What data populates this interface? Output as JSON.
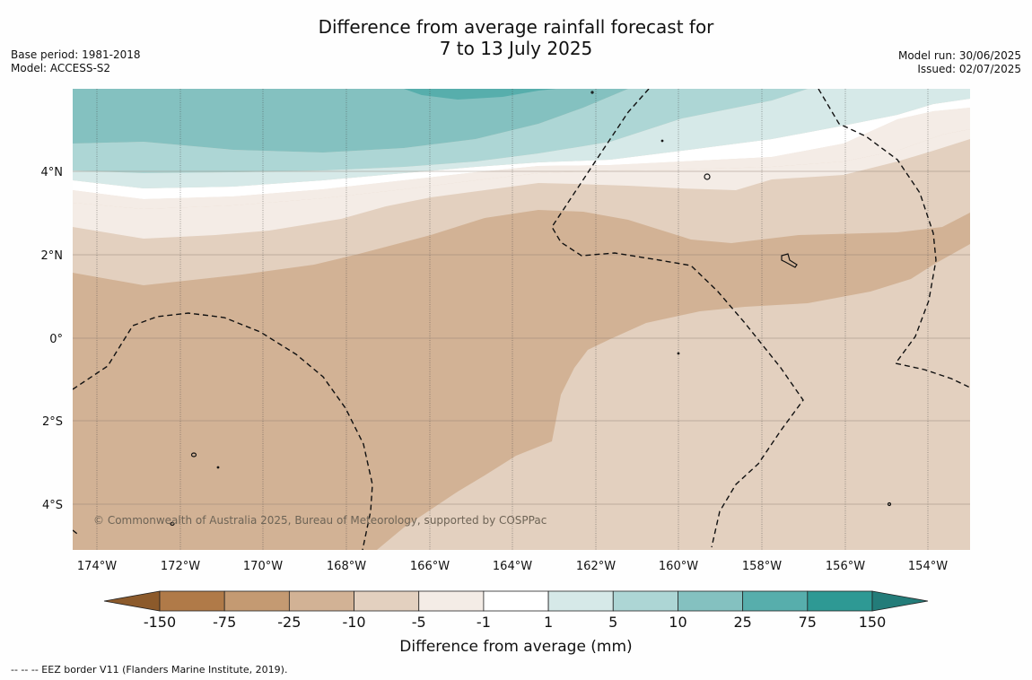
{
  "title": {
    "line1": "Difference from average rainfall forecast for",
    "line2": "7 to 13 July 2025"
  },
  "meta_left": {
    "base_period": "Base period: 1981-2018",
    "model": "Model: ACCESS-S2"
  },
  "meta_right": {
    "model_run": "Model run: 30/06/2025",
    "issued": "Issued: 02/07/2025"
  },
  "map": {
    "lon_range": [
      -174.6,
      -152.9
    ],
    "lat_range": [
      -5.2,
      5.9
    ],
    "x_ticks": [
      "174°W",
      "172°W",
      "170°W",
      "168°W",
      "166°W",
      "164°W",
      "162°W",
      "160°W",
      "158°W",
      "156°W",
      "154°W"
    ],
    "y_ticks": [
      "4°N",
      "2°N",
      "0°",
      "2°S",
      "4°S"
    ],
    "copyright": "© Commonwealth of Australia 2025, Bureau of Meteorology, supported by COSPPac"
  },
  "legend": {
    "ticks": [
      "-150",
      "-75",
      "-25",
      "-10",
      "-5",
      "-1",
      "1",
      "5",
      "10",
      "25",
      "75",
      "150"
    ],
    "colors": [
      "#8c5a2b",
      "#b07a48",
      "#c49a72",
      "#d2b295",
      "#e3d0bf",
      "#f4ece6",
      "#ffffff",
      "#d6e9e8",
      "#add6d5",
      "#84c1c0",
      "#57aeac",
      "#2e9994",
      "#237c79"
    ],
    "label": "Difference from average (mm)"
  },
  "footer": "--  --  -- EEZ border V11 (Flanders Marine Institute, 2019)."
}
